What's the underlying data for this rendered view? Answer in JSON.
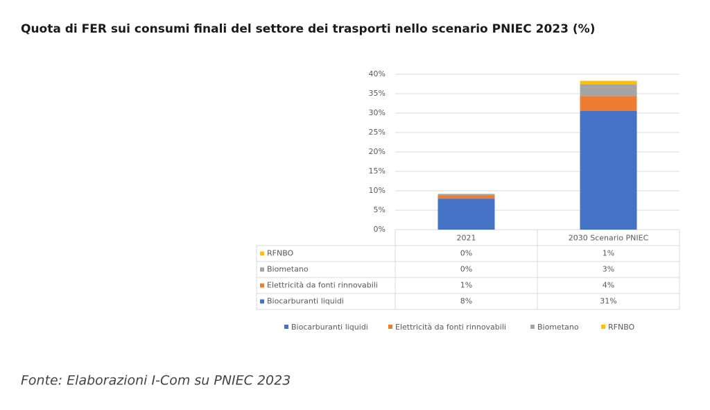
{
  "chart_data": {
    "type": "stacked-bar",
    "title": "Quota di FER sui consumi finali del settore dei trasporti nello scenario PNIEC 2023 (%)",
    "source": "Fonte: Elaborazioni I-Com su PNIEC 2023",
    "categories": [
      "2021",
      "2030 Scenario PNIEC"
    ],
    "series": [
      {
        "name": "Biocarburanti liquidi",
        "color": "#4472c4",
        "values": [
          8.0,
          30.6
        ],
        "value_labels": [
          "8%",
          "31%"
        ]
      },
      {
        "name": "Elettricità da fonti rinnovabili",
        "color": "#ed7d31",
        "values": [
          0.9,
          3.8
        ],
        "value_labels": [
          "1%",
          "4%"
        ]
      },
      {
        "name": "Biometano",
        "color": "#a5a5a5",
        "values": [
          0.3,
          3.0
        ],
        "value_labels": [
          "0%",
          "3%"
        ]
      },
      {
        "name": "RFNBO",
        "color": "#ffc000",
        "values": [
          0.0,
          0.9
        ],
        "value_labels": [
          "0%",
          "1%"
        ]
      }
    ],
    "ylim": [
      0,
      40
    ],
    "yticks": [
      {
        "value": 0,
        "label": "0%"
      },
      {
        "value": 5,
        "label": "5%"
      },
      {
        "value": 10,
        "label": "10%"
      },
      {
        "value": 15,
        "label": "15%"
      },
      {
        "value": 20,
        "label": "20%"
      },
      {
        "value": 25,
        "label": "25%"
      },
      {
        "value": 30,
        "label": "30%"
      },
      {
        "value": 35,
        "label": "35%"
      },
      {
        "value": 40,
        "label": "40%"
      }
    ],
    "grid": true
  }
}
